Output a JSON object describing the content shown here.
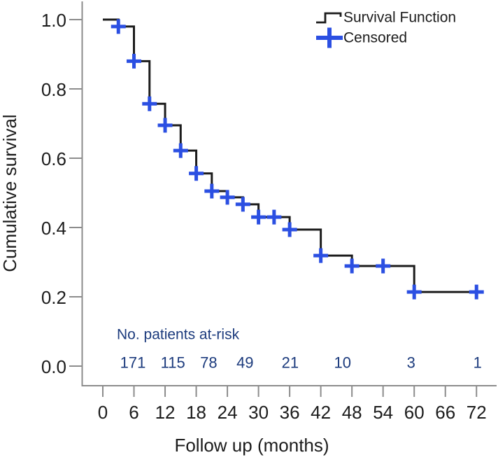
{
  "figure": {
    "background": "#ffffff"
  },
  "colors": {
    "axis": "#8c8c8c",
    "text": "#1c1c1c",
    "curve": "#1c1c1c",
    "censored_blue": "#2b4fe2",
    "at_risk_navy": "#1c3b7d"
  },
  "chart_data": {
    "type": "line",
    "subtype": "kaplan-meier-step",
    "title": "",
    "xlabel": "Follow up (months)",
    "ylabel": "Cumulative survival",
    "xlim": [
      0,
      72
    ],
    "ylim": [
      0.0,
      1.0
    ],
    "grid": false,
    "xticks": [
      0,
      6,
      12,
      18,
      24,
      30,
      36,
      42,
      48,
      54,
      60,
      66,
      72
    ],
    "yticks": [
      "0.0",
      "0.2",
      "0.4",
      "0.6",
      "0.8",
      "1.0"
    ],
    "legend": {
      "position": "top-right",
      "entries": [
        {
          "label": "Survival Function",
          "marker": "step-line",
          "color": "#1c1c1c"
        },
        {
          "label": "Censored",
          "marker": "plus",
          "color": "#2b4fe2"
        }
      ]
    },
    "series": [
      {
        "name": "Survival Function",
        "color": "#1c1c1c",
        "step_points": [
          [
            0,
            1.0
          ],
          [
            3,
            0.98
          ],
          [
            6,
            0.88
          ],
          [
            9,
            0.757
          ],
          [
            12,
            0.695
          ],
          [
            15,
            0.622
          ],
          [
            18,
            0.556
          ],
          [
            21,
            0.505
          ],
          [
            24,
            0.487
          ],
          [
            27,
            0.467
          ],
          [
            30,
            0.43
          ],
          [
            36,
            0.394
          ],
          [
            42,
            0.319
          ],
          [
            48,
            0.289
          ],
          [
            60,
            0.214
          ]
        ],
        "end_time": 72.4
      }
    ],
    "censored": {
      "name": "Censored",
      "color": "#2b4fe2",
      "points": [
        [
          3,
          0.98
        ],
        [
          6,
          0.88
        ],
        [
          9,
          0.757
        ],
        [
          12,
          0.695
        ],
        [
          15,
          0.622
        ],
        [
          18,
          0.556
        ],
        [
          21,
          0.505
        ],
        [
          24,
          0.487
        ],
        [
          27,
          0.467
        ],
        [
          30,
          0.43
        ],
        [
          33,
          0.43
        ],
        [
          36,
          0.394
        ],
        [
          42,
          0.319
        ],
        [
          48,
          0.289
        ],
        [
          54,
          0.289
        ],
        [
          60,
          0.214
        ],
        [
          72,
          0.214
        ]
      ]
    },
    "at_risk": {
      "title": "No. patients at-risk",
      "color": "#1c3b7d",
      "entries": [
        {
          "n": "171",
          "t": 5.8
        },
        {
          "n": "115",
          "t": 13.5
        },
        {
          "n": "78",
          "t": 20.4
        },
        {
          "n": "49",
          "t": 27.4
        },
        {
          "n": "21",
          "t": 36.1
        },
        {
          "n": "10",
          "t": 46.2
        },
        {
          "n": "3",
          "t": 59.4
        },
        {
          "n": "1",
          "t": 72.2
        }
      ]
    }
  }
}
